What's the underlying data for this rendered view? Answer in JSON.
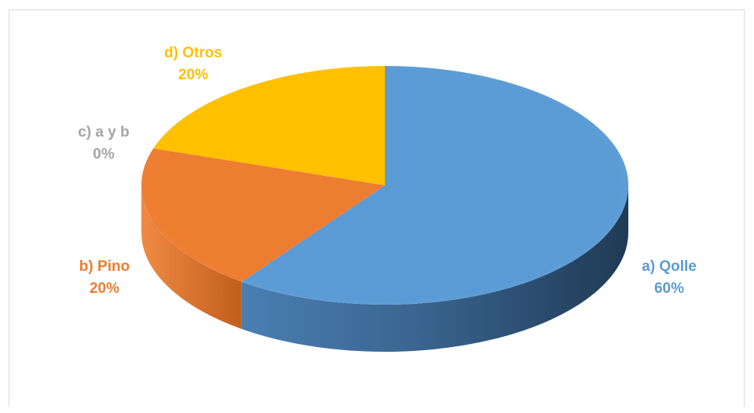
{
  "chart_data": {
    "type": "pie",
    "style": "3d",
    "slices": [
      {
        "label": "a) Qolle",
        "value": 60,
        "display": "60%",
        "color": "#5b9bd5",
        "label_position": "right"
      },
      {
        "label": "b) Pino",
        "value": 20,
        "display": "20%",
        "color": "#ed7d31",
        "label_position": "left"
      },
      {
        "label": "c) a y b",
        "value": 0,
        "display": "0%",
        "color": "#a5a5a5",
        "label_position": "left"
      },
      {
        "label": "d) Otros",
        "value": 20,
        "display": "20%",
        "color": "#ffc000",
        "label_position": "top-left"
      }
    ],
    "legend": "none"
  }
}
